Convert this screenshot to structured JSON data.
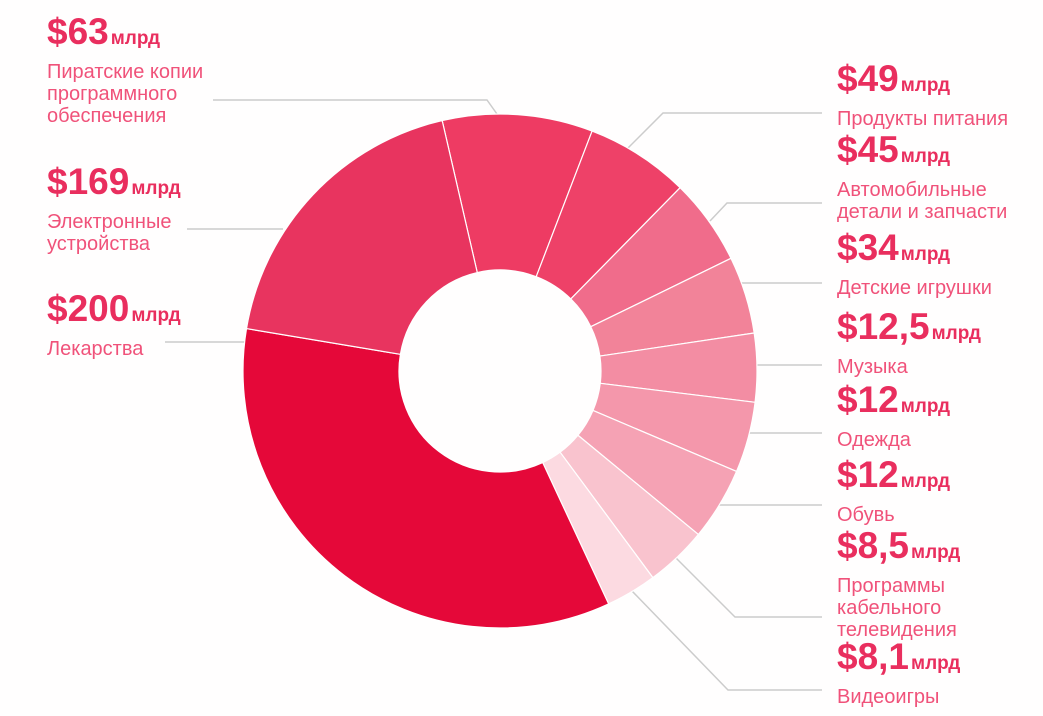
{
  "chart_data": {
    "type": "pie",
    "subtype": "donut",
    "title": "",
    "unit": "млрд $",
    "legend_position": "callout-labels",
    "start_angle_deg": 347,
    "slices": [
      {
        "label": "Пиратские копии программного обеспечения",
        "value": 63,
        "value_display": "$63",
        "unit": "млрд",
        "span_deg": 34,
        "color": "#ee3b63"
      },
      {
        "label": "Продукты питания",
        "value": 49,
        "value_display": "$49",
        "unit": "млрд",
        "span_deg": 23.5,
        "color": "#ee4168"
      },
      {
        "label": "Автомобильные детали и запчасти",
        "value": 45,
        "value_display": "$45",
        "unit": "млрд",
        "span_deg": 19.5,
        "color": "#f06c8b"
      },
      {
        "label": "Детские игрушки",
        "value": 34,
        "value_display": "$34",
        "unit": "млрд",
        "span_deg": 17.5,
        "color": "#f28399"
      },
      {
        "label": "Музыка",
        "value": 12.5,
        "value_display": "$12,5",
        "unit": "млрд",
        "span_deg": 15.5,
        "color": "#f38da3"
      },
      {
        "label": "Одежда",
        "value": 12,
        "value_display": "$12",
        "unit": "млрд",
        "span_deg": 16,
        "color": "#f497ab"
      },
      {
        "label": "Обувь",
        "value": 12,
        "value_display": "$12",
        "unit": "млрд",
        "span_deg": 16.5,
        "color": "#f5a2b4"
      },
      {
        "label": "Программы кабельного телевидения",
        "value": 8.5,
        "value_display": "$8,5",
        "unit": "млрд",
        "span_deg": 14,
        "color": "#f9c3ce"
      },
      {
        "label": "Видеоигры",
        "value": 8.1,
        "value_display": "$8,1",
        "unit": "млрд",
        "span_deg": 11.5,
        "color": "#fcdae1"
      },
      {
        "label": "Лекарства",
        "value": 200,
        "value_display": "$200",
        "unit": "млрд",
        "span_deg": 124.5,
        "color": "#e50839"
      },
      {
        "label": "Электронные устройства",
        "value": 169,
        "value_display": "$169",
        "unit": "млрд",
        "span_deg": 67.5,
        "color": "#e8345f"
      }
    ]
  },
  "labels": [
    {
      "value": "$63",
      "unit": "млрд",
      "name": "Пиратские копии\nпрограммного\nобеспечения"
    },
    {
      "value": "$49",
      "unit": "млрд",
      "name": "Продукты питания"
    },
    {
      "value": "$45",
      "unit": "млрд",
      "name": "Автомобильные\nдетали и запчасти"
    },
    {
      "value": "$34",
      "unit": "млрд",
      "name": "Детские игрушки"
    },
    {
      "value": "$12,5",
      "unit": "млрд",
      "name": "Музыка"
    },
    {
      "value": "$12",
      "unit": "млрд",
      "name": "Одежда"
    },
    {
      "value": "$12",
      "unit": "млрд",
      "name": "Обувь"
    },
    {
      "value": "$8,5",
      "unit": "млрд",
      "name": "Программы\nкабельного\nтелевидения"
    },
    {
      "value": "$8,1",
      "unit": "млрд",
      "name": "Видеоигры"
    },
    {
      "value": "$200",
      "unit": "млрд",
      "name": "Лекарства"
    },
    {
      "value": "$169",
      "unit": "млрд",
      "name": "Электронные\nустройства"
    }
  ],
  "colors": {
    "value_text": "#e92e5e",
    "name_text": "#f0527a",
    "leader_line": "#cccccc",
    "background": "#fffefe"
  }
}
